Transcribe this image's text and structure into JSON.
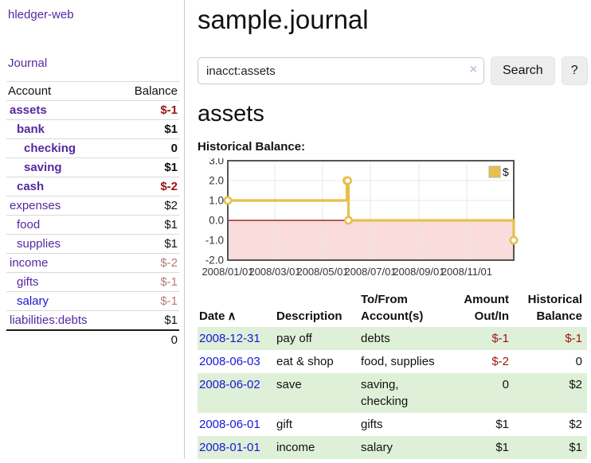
{
  "app": {
    "title": "hledger-web"
  },
  "sidebar": {
    "journal_link": "Journal",
    "accounts_table": {
      "headers": {
        "account": "Account",
        "balance": "Balance"
      },
      "rows": [
        {
          "name": "assets",
          "balance": "$-1",
          "level": 1,
          "bold": true,
          "balance_style": "negative",
          "link_style": "purple"
        },
        {
          "name": "bank",
          "balance": "$1",
          "level": 2,
          "bold": true,
          "balance_style": "normal",
          "link_style": "purple"
        },
        {
          "name": "checking",
          "balance": "0",
          "level": 3,
          "bold": true,
          "balance_style": "normal",
          "link_style": "purple"
        },
        {
          "name": "saving",
          "balance": "$1",
          "level": 3,
          "bold": true,
          "balance_style": "normal",
          "link_style": "purple"
        },
        {
          "name": "cash",
          "balance": "$-2",
          "level": 2,
          "bold": true,
          "balance_style": "negative",
          "link_style": "purple"
        },
        {
          "name": "expenses",
          "balance": "$2",
          "level": 1,
          "bold": false,
          "balance_style": "normal",
          "link_style": "purple"
        },
        {
          "name": "food",
          "balance": "$1",
          "level": 2,
          "bold": false,
          "balance_style": "normal",
          "link_style": "purple"
        },
        {
          "name": "supplies",
          "balance": "$1",
          "level": 2,
          "bold": false,
          "balance_style": "normal",
          "link_style": "purple"
        },
        {
          "name": "income",
          "balance": "$-2",
          "level": 1,
          "bold": false,
          "balance_style": "faded",
          "link_style": "purple"
        },
        {
          "name": "gifts",
          "balance": "$-1",
          "level": 2,
          "bold": false,
          "balance_style": "faded",
          "link_style": "purple"
        },
        {
          "name": "salary",
          "balance": "$-1",
          "level": 2,
          "bold": false,
          "balance_style": "faded",
          "link_style": "blue"
        },
        {
          "name": "liabilities:debts",
          "balance": "$1",
          "level": 1,
          "bold": false,
          "balance_style": "normal",
          "link_style": "purple"
        }
      ],
      "total": "0"
    }
  },
  "main": {
    "title": "sample.journal",
    "search": {
      "value": "inacct:assets",
      "clear_icon": "×",
      "search_button_label": "Search",
      "help_button_label": "?"
    },
    "account_heading": "assets",
    "chart_heading": "Historical Balance:"
  },
  "chart_data": {
    "type": "line",
    "title": "Historical Balance:",
    "series": [
      {
        "name": "$",
        "style": "step-after",
        "color": "#e7c04a",
        "points": [
          [
            "2008-01-01",
            1
          ],
          [
            "2008-06-01",
            2
          ],
          [
            "2008-06-02",
            2
          ],
          [
            "2008-06-03",
            0
          ],
          [
            "2008-12-31",
            -1
          ]
        ]
      }
    ],
    "x_range": [
      "2008-01-01",
      "2008-12-31"
    ],
    "xticks": [
      "2008/01/01",
      "2008/03/01",
      "2008/05/01",
      "2008/07/01",
      "2008/09/01",
      "2008/11/01"
    ],
    "yticks": [
      "3.0",
      "2.0",
      "1.0",
      "0.0",
      "-1.0",
      "-2.0"
    ],
    "ylim": [
      -2.0,
      3.0
    ],
    "grid": true,
    "legend": {
      "position": "top-right",
      "label": "$"
    },
    "negative_region_color": "#fbdcdc",
    "zero_line_color": "#8b0000",
    "gridline_color": "#e7e7e7",
    "border_color": "#545454"
  },
  "transactions": {
    "headers": {
      "date": "Date",
      "sort_icon": "∧",
      "description": "Description",
      "accounts": "To/From Account(s)",
      "amount": "Amount Out/In",
      "balance": "Historical Balance"
    },
    "rows": [
      {
        "date": "2008-12-31",
        "description": "pay off",
        "accounts": "debts",
        "amount": "$-1",
        "amount_negative": true,
        "balance": "$-1",
        "balance_negative": true
      },
      {
        "date": "2008-06-03",
        "description": "eat & shop",
        "accounts": "food, supplies",
        "amount": "$-2",
        "amount_negative": true,
        "balance": "0",
        "balance_negative": false
      },
      {
        "date": "2008-06-02",
        "description": "save",
        "accounts": "saving, checking",
        "amount": "0",
        "amount_negative": false,
        "balance": "$2",
        "balance_negative": false
      },
      {
        "date": "2008-06-01",
        "description": "gift",
        "accounts": "gifts",
        "amount": "$1",
        "amount_negative": false,
        "balance": "$2",
        "balance_negative": false
      },
      {
        "date": "2008-01-01",
        "description": "income",
        "accounts": "salary",
        "amount": "$1",
        "amount_negative": false,
        "balance": "$1",
        "balance_negative": false
      }
    ]
  },
  "colors": {
    "link_purple": "#5528a0",
    "link_blue": "#1717d6",
    "negative": "#9b1313",
    "faded_negative": "#b87a7a",
    "row_green": "#dff0d8",
    "accent_gold": "#e7c04a"
  }
}
